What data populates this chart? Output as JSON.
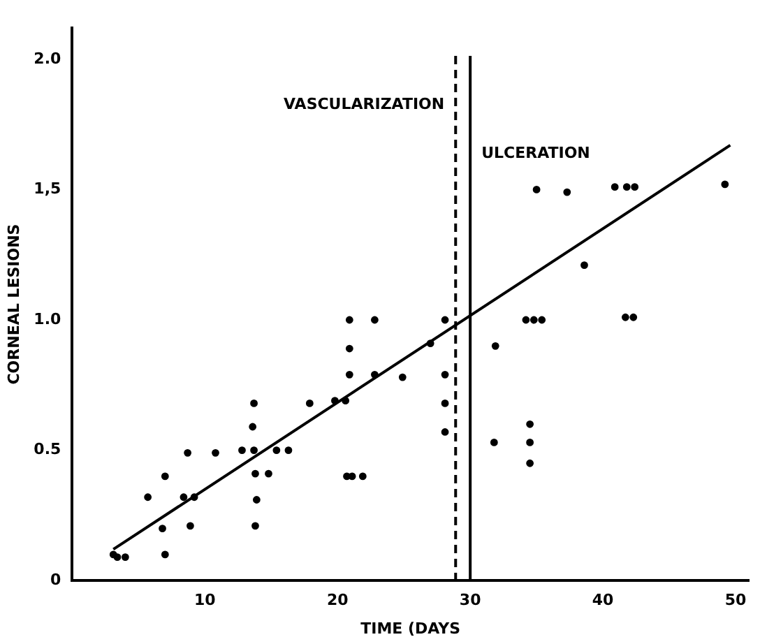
{
  "chart_data": {
    "type": "scatter",
    "xlabel": "TIME (DAYS",
    "ylabel": "CORNEAL LESIONS",
    "xlim": [
      0,
      51
    ],
    "xticks": [
      10,
      20,
      30,
      40,
      50
    ],
    "ylim": [
      0,
      2.12
    ],
    "yticks": [
      0,
      0.5,
      {
        "value": 1,
        "label": "1.0"
      },
      {
        "value": 1.5,
        "label": "1,5"
      },
      {
        "value": 2,
        "label": "2.0"
      }
    ],
    "grid": false,
    "legend": false,
    "series": [
      {
        "marker": "circle",
        "color": "#000000",
        "x": [
          3.1,
          3.4,
          4.0,
          5.7,
          6.8,
          7.0,
          7.0,
          8.7,
          8.4,
          9.2,
          8.9,
          10.8,
          12.8,
          13.7,
          13.6,
          13.8,
          14.8,
          13.9,
          13.8,
          15.4,
          16.3,
          13.7,
          17.9,
          19.8,
          20.6,
          20.9,
          22.8,
          20.9,
          20.9,
          22.8,
          24.9,
          20.7,
          21.1,
          21.9,
          27.0,
          28.1,
          28.1,
          28.1,
          28.1,
          35.0,
          37.3,
          40.9,
          41.8,
          42.4,
          49.2,
          38.6,
          34.2,
          34.8,
          35.4,
          41.7,
          42.3,
          31.9,
          31.8,
          34.5,
          34.5,
          34.5
        ],
        "values": [
          0.1,
          0.09,
          0.09,
          0.32,
          0.2,
          0.4,
          0.1,
          0.49,
          0.32,
          0.32,
          0.21,
          0.49,
          0.5,
          0.5,
          0.59,
          0.41,
          0.41,
          0.31,
          0.21,
          0.5,
          0.5,
          0.68,
          0.68,
          0.69,
          0.69,
          1.0,
          1.0,
          0.89,
          0.79,
          0.79,
          0.78,
          0.4,
          0.4,
          0.4,
          0.91,
          1.0,
          0.79,
          0.68,
          0.57,
          1.5,
          1.49,
          1.51,
          1.51,
          1.51,
          1.52,
          1.21,
          1.0,
          1.0,
          1.0,
          1.01,
          1.01,
          0.9,
          0.53,
          0.6,
          0.53,
          0.45
        ]
      },
      {
        "type": "line",
        "marker": "none",
        "color": "#000000",
        "x": [
          3.1,
          49.6
        ],
        "values": [
          0.12,
          1.67
        ]
      }
    ],
    "ref_lines": [
      {
        "axis": "x",
        "value": 28.9,
        "label": "VASCULARIZATION",
        "line_style": "dashed",
        "color": "#000000"
      },
      {
        "axis": "x",
        "value": 30,
        "label": "ULCERATION",
        "line_style": "solid",
        "color": "#000000"
      }
    ]
  }
}
